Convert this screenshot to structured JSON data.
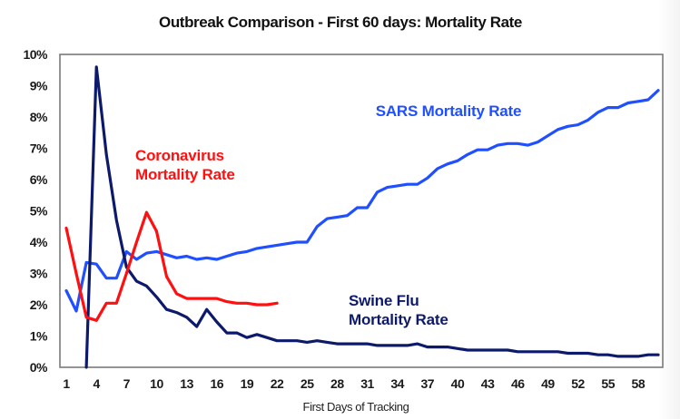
{
  "chart_data": {
    "type": "line",
    "title": "Outbreak Comparison - First 60 days: Mortality Rate",
    "xlabel": "First Days of Tracking",
    "ylabel": "",
    "xlim": [
      1,
      60
    ],
    "ylim": [
      0,
      10
    ],
    "grid": false,
    "legend": "none (inline annotations)",
    "x_ticks": [
      "1",
      "4",
      "7",
      "10",
      "13",
      "16",
      "19",
      "22",
      "25",
      "28",
      "31",
      "34",
      "37",
      "40",
      "43",
      "46",
      "49",
      "52",
      "55",
      "58"
    ],
    "y_ticks": [
      "0%",
      "1%",
      "2%",
      "3%",
      "4%",
      "5%",
      "6%",
      "7%",
      "8%",
      "9%",
      "10%"
    ],
    "series": [
      {
        "name": "SARS Mortality Rate",
        "color": "#1f4fff",
        "x_start": 1,
        "values": [
          2.45,
          1.8,
          3.35,
          3.3,
          2.85,
          2.85,
          3.7,
          3.45,
          3.65,
          3.7,
          3.6,
          3.5,
          3.55,
          3.45,
          3.5,
          3.45,
          3.55,
          3.65,
          3.7,
          3.8,
          3.85,
          3.9,
          3.95,
          4.0,
          4.0,
          4.5,
          4.75,
          4.8,
          4.85,
          5.1,
          5.1,
          5.6,
          5.75,
          5.8,
          5.85,
          5.85,
          6.05,
          6.35,
          6.5,
          6.6,
          6.8,
          6.95,
          6.95,
          7.1,
          7.15,
          7.15,
          7.1,
          7.2,
          7.4,
          7.6,
          7.7,
          7.75,
          7.9,
          8.15,
          8.3,
          8.3,
          8.45,
          8.5,
          8.55,
          8.85
        ]
      },
      {
        "name": "Coronavirus Mortality Rate",
        "color": "#ff1010",
        "x_start": 1,
        "values": [
          4.45,
          3.0,
          1.6,
          1.5,
          2.05,
          2.05,
          3.0,
          4.0,
          4.95,
          4.35,
          2.9,
          2.35,
          2.2,
          2.2,
          2.2,
          2.2,
          2.1,
          2.05,
          2.05,
          2.0,
          2.0,
          2.05
        ]
      },
      {
        "name": "Swine Flu Mortality Rate",
        "color": "#0d1a6b",
        "x_start": 3,
        "values": [
          0,
          9.6,
          6.8,
          4.7,
          3.2,
          2.75,
          2.6,
          2.25,
          1.85,
          1.75,
          1.6,
          1.3,
          1.85,
          1.45,
          1.1,
          1.1,
          0.95,
          1.05,
          0.95,
          0.85,
          0.85,
          0.85,
          0.8,
          0.85,
          0.8,
          0.75,
          0.75,
          0.75,
          0.75,
          0.7,
          0.7,
          0.7,
          0.7,
          0.75,
          0.65,
          0.65,
          0.65,
          0.6,
          0.55,
          0.55,
          0.55,
          0.55,
          0.55,
          0.5,
          0.5,
          0.5,
          0.5,
          0.5,
          0.45,
          0.45,
          0.45,
          0.4,
          0.4,
          0.35,
          0.35,
          0.35,
          0.4,
          0.4
        ]
      }
    ],
    "annotations": [
      {
        "lines": [
          "SARS Mortality Rate"
        ],
        "color": "#1f4fff",
        "series": "SARS Mortality Rate"
      },
      {
        "lines": [
          "Coronavirus",
          "Mortality Rate"
        ],
        "color": "#ff1010",
        "series": "Coronavirus Mortality Rate"
      },
      {
        "lines": [
          "Swine Flu",
          "Mortality Rate"
        ],
        "color": "#0d1a6b",
        "series": "Swine Flu Mortality Rate"
      }
    ]
  }
}
